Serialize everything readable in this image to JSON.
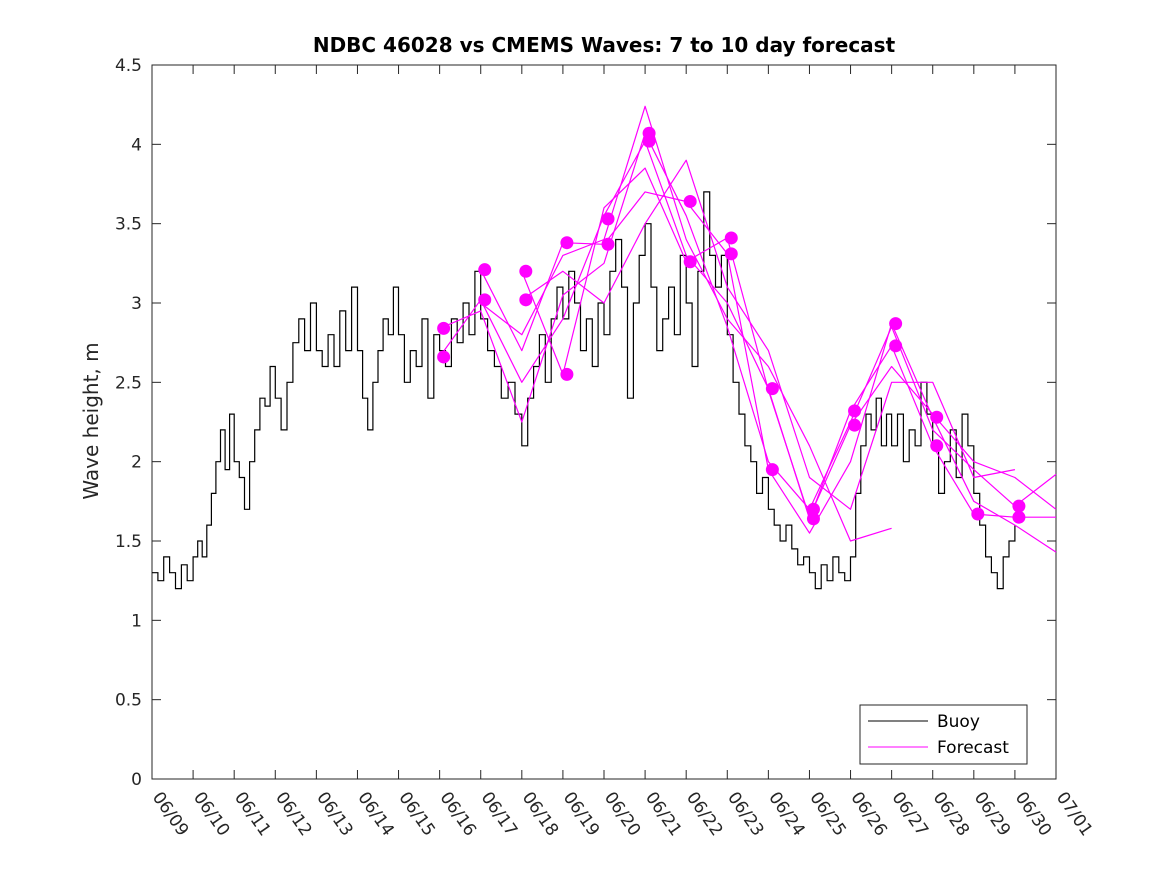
{
  "chart_data": {
    "type": "line",
    "title": "NDBC 46028 vs CMEMS Waves: 7 to 10 day forecast",
    "xlabel": "",
    "ylabel": "Wave height, m",
    "xlim": [
      "06/09",
      "07/01"
    ],
    "ylim": [
      0,
      4.5
    ],
    "yticks": [
      "0",
      "0.5",
      "1",
      "1.5",
      "2",
      "2.5",
      "3",
      "3.5",
      "4",
      "4.5"
    ],
    "xticks": [
      "06/09",
      "06/10",
      "06/11",
      "06/12",
      "06/13",
      "06/14",
      "06/15",
      "06/16",
      "06/17",
      "06/18",
      "06/19",
      "06/20",
      "06/21",
      "06/22",
      "06/23",
      "06/24",
      "06/25",
      "06/26",
      "06/27",
      "06/28",
      "06/29",
      "06/30",
      "07/01"
    ],
    "grid": false,
    "legend_position": "bottom-right",
    "colors": {
      "buoy": "#000000",
      "forecast": "#ff00ff"
    },
    "series": [
      {
        "name": "Buoy",
        "points": [
          [
            "06/09",
            1.3
          ],
          [
            "06/09",
            1.25
          ],
          [
            "06/09",
            1.4
          ],
          [
            "06/09",
            1.3
          ],
          [
            "06/09",
            1.2
          ],
          [
            "06/09",
            1.35
          ],
          [
            "06/09",
            1.25
          ],
          [
            "06/10",
            1.4
          ],
          [
            "06/10",
            1.5
          ],
          [
            "06/10",
            1.4
          ],
          [
            "06/10",
            1.6
          ],
          [
            "06/10",
            1.8
          ],
          [
            "06/10",
            2.0
          ],
          [
            "06/10",
            2.2
          ],
          [
            "06/10",
            1.95
          ],
          [
            "06/10",
            2.3
          ],
          [
            "06/11",
            2.0
          ],
          [
            "06/11",
            1.9
          ],
          [
            "06/11",
            1.7
          ],
          [
            "06/11",
            2.0
          ],
          [
            "06/11",
            2.2
          ],
          [
            "06/11",
            2.4
          ],
          [
            "06/11",
            2.35
          ],
          [
            "06/11",
            2.6
          ],
          [
            "06/12",
            2.4
          ],
          [
            "06/12",
            2.2
          ],
          [
            "06/12",
            2.5
          ],
          [
            "06/12",
            2.75
          ],
          [
            "06/12",
            2.9
          ],
          [
            "06/12",
            2.7
          ],
          [
            "06/12",
            3.0
          ],
          [
            "06/13",
            2.7
          ],
          [
            "06/13",
            2.6
          ],
          [
            "06/13",
            2.8
          ],
          [
            "06/13",
            2.6
          ],
          [
            "06/13",
            2.95
          ],
          [
            "06/13",
            2.7
          ],
          [
            "06/13",
            3.1
          ],
          [
            "06/14",
            2.7
          ],
          [
            "06/14",
            2.4
          ],
          [
            "06/14",
            2.2
          ],
          [
            "06/14",
            2.5
          ],
          [
            "06/14",
            2.7
          ],
          [
            "06/14",
            2.9
          ],
          [
            "06/14",
            2.8
          ],
          [
            "06/14",
            3.1
          ],
          [
            "06/15",
            2.8
          ],
          [
            "06/15",
            2.5
          ],
          [
            "06/15",
            2.7
          ],
          [
            "06/15",
            2.6
          ],
          [
            "06/15",
            2.9
          ],
          [
            "06/15",
            2.4
          ],
          [
            "06/15",
            2.8
          ],
          [
            "06/16",
            2.7
          ],
          [
            "06/16",
            2.6
          ],
          [
            "06/16",
            2.9
          ],
          [
            "06/16",
            2.75
          ],
          [
            "06/16",
            3.0
          ],
          [
            "06/16",
            2.8
          ],
          [
            "06/16",
            3.2
          ],
          [
            "06/17",
            2.9
          ],
          [
            "06/17",
            2.7
          ],
          [
            "06/17",
            2.6
          ],
          [
            "06/17",
            2.4
          ],
          [
            "06/17",
            2.5
          ],
          [
            "06/17",
            2.3
          ],
          [
            "06/18",
            2.1
          ],
          [
            "06/18",
            2.4
          ],
          [
            "06/18",
            2.6
          ],
          [
            "06/18",
            2.8
          ],
          [
            "06/18",
            2.5
          ],
          [
            "06/18",
            2.9
          ],
          [
            "06/18",
            3.1
          ],
          [
            "06/19",
            2.9
          ],
          [
            "06/19",
            3.2
          ],
          [
            "06/19",
            3.0
          ],
          [
            "06/19",
            2.7
          ],
          [
            "06/19",
            2.9
          ],
          [
            "06/19",
            2.6
          ],
          [
            "06/19",
            3.0
          ],
          [
            "06/20",
            2.8
          ],
          [
            "06/20",
            3.2
          ],
          [
            "06/20",
            3.4
          ],
          [
            "06/20",
            3.1
          ],
          [
            "06/20",
            2.4
          ],
          [
            "06/20",
            3.0
          ],
          [
            "06/20",
            3.3
          ],
          [
            "06/21",
            3.5
          ],
          [
            "06/21",
            3.1
          ],
          [
            "06/21",
            2.7
          ],
          [
            "06/21",
            2.9
          ],
          [
            "06/21",
            3.1
          ],
          [
            "06/21",
            2.8
          ],
          [
            "06/21",
            3.3
          ],
          [
            "06/22",
            3.0
          ],
          [
            "06/22",
            2.6
          ],
          [
            "06/22",
            3.2
          ],
          [
            "06/22",
            3.7
          ],
          [
            "06/22",
            3.3
          ],
          [
            "06/22",
            3.1
          ],
          [
            "06/22",
            3.3
          ],
          [
            "06/23",
            2.8
          ],
          [
            "06/23",
            2.5
          ],
          [
            "06/23",
            2.3
          ],
          [
            "06/23",
            2.1
          ],
          [
            "06/23",
            2.0
          ],
          [
            "06/23",
            1.8
          ],
          [
            "06/23",
            1.9
          ],
          [
            "06/24",
            1.7
          ],
          [
            "06/24",
            1.6
          ],
          [
            "06/24",
            1.5
          ],
          [
            "06/24",
            1.6
          ],
          [
            "06/24",
            1.45
          ],
          [
            "06/24",
            1.35
          ],
          [
            "06/24",
            1.4
          ],
          [
            "06/25",
            1.3
          ],
          [
            "06/25",
            1.2
          ],
          [
            "06/25",
            1.35
          ],
          [
            "06/25",
            1.25
          ],
          [
            "06/25",
            1.4
          ],
          [
            "06/25",
            1.3
          ],
          [
            "06/25",
            1.25
          ],
          [
            "06/26",
            1.4
          ],
          [
            "06/26",
            1.8
          ],
          [
            "06/26",
            2.1
          ],
          [
            "06/26",
            2.3
          ],
          [
            "06/26",
            2.2
          ],
          [
            "06/26",
            2.4
          ],
          [
            "06/26",
            2.1
          ],
          [
            "06/26",
            2.3
          ],
          [
            "06/27",
            2.1
          ],
          [
            "06/27",
            2.3
          ],
          [
            "06/27",
            2.0
          ],
          [
            "06/27",
            2.2
          ],
          [
            "06/27",
            2.1
          ],
          [
            "06/27",
            2.5
          ],
          [
            "06/27",
            2.3
          ],
          [
            "06/28",
            2.1
          ],
          [
            "06/28",
            1.8
          ],
          [
            "06/28",
            2.0
          ],
          [
            "06/28",
            2.2
          ],
          [
            "06/28",
            1.9
          ],
          [
            "06/28",
            2.3
          ],
          [
            "06/28",
            2.1
          ],
          [
            "06/29",
            1.8
          ],
          [
            "06/29",
            1.6
          ],
          [
            "06/29",
            1.4
          ],
          [
            "06/29",
            1.3
          ],
          [
            "06/29",
            1.2
          ],
          [
            "06/29",
            1.4
          ],
          [
            "06/29",
            1.5
          ],
          [
            "06/30",
            1.6
          ]
        ]
      },
      {
        "name": "Forecast",
        "lines": [
          [
            [
              "06/16",
              2.84
            ],
            [
              "06/17",
              2.95
            ],
            [
              "06/18",
              2.25
            ],
            [
              "06/19",
              3.05
            ],
            [
              "06/20",
              3.25
            ],
            [
              "06/21",
              4.07
            ],
            [
              "06/22",
              3.55
            ],
            [
              "06/23",
              2.85
            ],
            [
              "06/24",
              2.0
            ],
            [
              "06/25",
              1.7
            ],
            [
              "06/26",
              2.25
            ],
            [
              "06/27",
              2.85
            ],
            [
              "06/28",
              2.2
            ],
            [
              "06/29",
              1.95
            ],
            [
              "06/30",
              1.72
            ],
            [
              "07/01",
              1.92
            ]
          ],
          [
            [
              "06/16",
              2.66
            ],
            [
              "06/17",
              3.02
            ],
            [
              "06/18",
              2.5
            ],
            [
              "06/19",
              2.9
            ],
            [
              "06/20",
              3.55
            ],
            [
              "06/21",
              4.02
            ],
            [
              "06/22",
              3.3
            ],
            [
              "06/23",
              3.0
            ],
            [
              "06/24",
              2.46
            ],
            [
              "06/25",
              1.64
            ],
            [
              "06/26",
              2.32
            ],
            [
              "06/27",
              2.73
            ],
            [
              "06/28",
              2.1
            ],
            [
              "06/29",
              1.67
            ],
            [
              "06/30",
              1.65
            ],
            [
              "07/01",
              1.65
            ]
          ],
          [
            [
              "06/17",
              3.21
            ],
            [
              "06/18",
              2.7
            ],
            [
              "06/19",
              3.38
            ],
            [
              "06/20",
              3.37
            ],
            [
              "06/21",
              3.7
            ],
            [
              "06/22",
              3.64
            ],
            [
              "06/23",
              3.31
            ],
            [
              "06/24",
              1.95
            ],
            [
              "06/25",
              1.55
            ],
            [
              "06/26",
              2.0
            ],
            [
              "06/27",
              2.87
            ],
            [
              "06/28",
              2.28
            ],
            [
              "06/29",
              1.75
            ],
            [
              "06/30",
              1.6
            ],
            [
              "07/01",
              1.43
            ]
          ],
          [
            [
              "06/18",
              3.2
            ],
            [
              "06/19",
              2.55
            ],
            [
              "06/20",
              3.6
            ],
            [
              "06/21",
              3.85
            ],
            [
              "06/22",
              3.26
            ],
            [
              "06/23",
              3.41
            ],
            [
              "06/24",
              2.45
            ],
            [
              "06/25",
              1.65
            ],
            [
              "06/26",
              2.23
            ],
            [
              "06/27",
              2.6
            ],
            [
              "06/28",
              2.3
            ],
            [
              "06/29",
              2.0
            ],
            [
              "06/30",
              1.9
            ],
            [
              "07/01",
              1.7
            ]
          ],
          [
            [
              "06/18",
              3.02
            ],
            [
              "06/19",
              3.2
            ],
            [
              "06/20",
              3.0
            ],
            [
              "06/21",
              3.5
            ],
            [
              "06/22",
              3.9
            ],
            [
              "06/23",
              3.1
            ],
            [
              "06/24",
              2.7
            ],
            [
              "06/25",
              1.9
            ],
            [
              "06/26",
              1.7
            ],
            [
              "06/27",
              2.5
            ],
            [
              "06/28",
              2.5
            ],
            [
              "06/29",
              1.9
            ],
            [
              "06/30",
              1.95
            ]
          ],
          [
            [
              "06/17",
              3.0
            ],
            [
              "06/18",
              2.8
            ],
            [
              "06/19",
              3.3
            ],
            [
              "06/20",
              3.4
            ],
            [
              "06/21",
              4.24
            ],
            [
              "06/22",
              3.4
            ],
            [
              "06/23",
              2.9
            ],
            [
              "06/24",
              2.6
            ],
            [
              "06/25",
              2.1
            ],
            [
              "06/26",
              1.5
            ],
            [
              "06/27",
              1.58
            ]
          ]
        ],
        "markers": [
          [
            "06/16",
            2.84
          ],
          [
            "06/16",
            2.66
          ],
          [
            "06/17",
            3.21
          ],
          [
            "06/17",
            3.02
          ],
          [
            "06/18",
            3.2
          ],
          [
            "06/18",
            3.02
          ],
          [
            "06/19",
            3.38
          ],
          [
            "06/19",
            2.55
          ],
          [
            "06/20",
            3.53
          ],
          [
            "06/20",
            3.37
          ],
          [
            "06/21",
            4.07
          ],
          [
            "06/21",
            4.02
          ],
          [
            "06/22",
            3.64
          ],
          [
            "06/22",
            3.26
          ],
          [
            "06/23",
            3.41
          ],
          [
            "06/23",
            3.31
          ],
          [
            "06/24",
            2.46
          ],
          [
            "06/24",
            1.95
          ],
          [
            "06/25",
            1.7
          ],
          [
            "06/25",
            1.64
          ],
          [
            "06/26",
            2.32
          ],
          [
            "06/26",
            2.23
          ],
          [
            "06/27",
            2.87
          ],
          [
            "06/27",
            2.73
          ],
          [
            "06/28",
            2.28
          ],
          [
            "06/28",
            2.1
          ],
          [
            "06/29",
            1.67
          ],
          [
            "06/30",
            1.72
          ],
          [
            "06/30",
            1.65
          ]
        ]
      }
    ],
    "legend": [
      {
        "label": "Buoy"
      },
      {
        "label": "Forecast"
      }
    ]
  }
}
